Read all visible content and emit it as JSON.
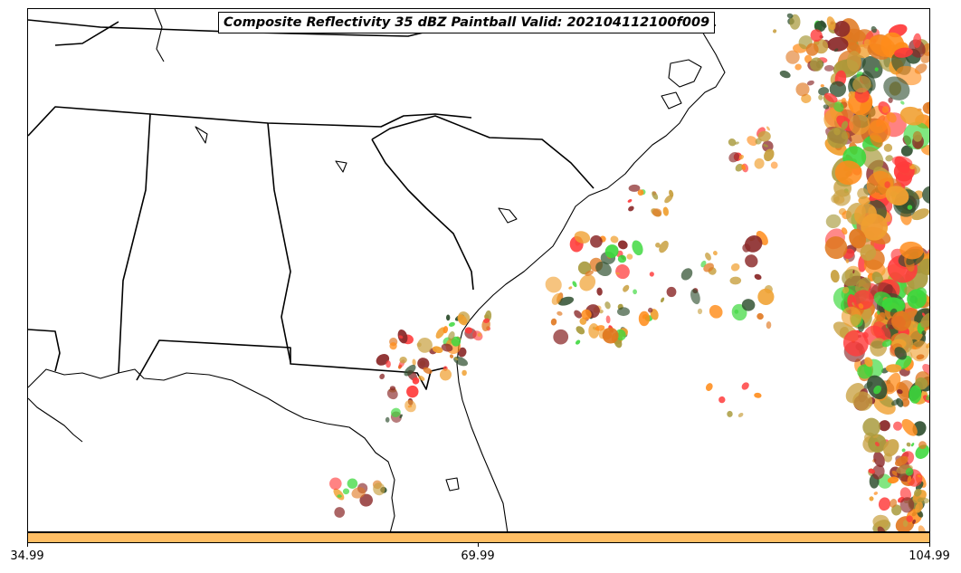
{
  "title": "Composite Reflectivity 35 dBZ Paintball Valid: 202104112100f009",
  "colorbar": {
    "color": "#ffbe64",
    "min": 34.99,
    "max": 104.99,
    "tick_labels": [
      "34.99",
      "69.99",
      "104.99"
    ]
  },
  "member_colors": [
    "#ff3b3b",
    "#ff8c1a",
    "#f0a030",
    "#3cd83c",
    "#8b2a2a",
    "#a89a3c",
    "#2f4f2f",
    "#e07820",
    "#c8a040"
  ],
  "map": {
    "region": "southeast-united-states",
    "features": [
      "coastline",
      "state-borders"
    ]
  }
}
